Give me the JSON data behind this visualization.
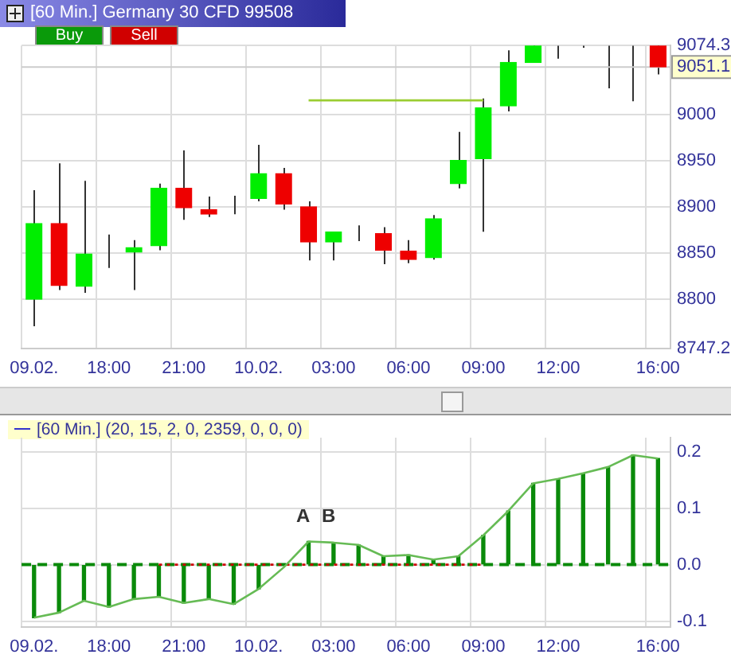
{
  "chart_data": [
    {
      "type": "candlestick",
      "title": "[60 Min.] Germany 30 CFD  99508",
      "categories": [
        "09.02.",
        null,
        null,
        "18:00",
        null,
        null,
        "21:00",
        null,
        null,
        "10.02.",
        null,
        null,
        "03:00",
        null,
        null,
        "06:00",
        null,
        null,
        "09:00",
        null,
        null,
        "12:00",
        null,
        null,
        null,
        "16:00"
      ],
      "ohlc": [
        [
          8800,
          8918,
          8771,
          8882
        ],
        [
          8882,
          8947,
          8810,
          8815
        ],
        [
          8814,
          8928,
          8807,
          8849
        ],
        [
          8849,
          8870,
          8834,
          8849
        ],
        [
          8851,
          8864,
          8810,
          8856
        ],
        [
          8858,
          8925,
          8853,
          8920
        ],
        [
          8920,
          8961,
          8886,
          8899
        ],
        [
          8897,
          8911,
          8889,
          8892
        ],
        [
          8892,
          8912,
          8892,
          8892
        ],
        [
          8909,
          8967,
          8906,
          8936
        ],
        [
          8936,
          8942,
          8897,
          8903
        ],
        [
          8900,
          8906,
          8842,
          8862
        ],
        [
          8862,
          8873,
          8842,
          8873
        ],
        [
          8873,
          8880,
          8863,
          8873
        ],
        [
          8871,
          8878,
          8838,
          8853
        ],
        [
          8852,
          8864,
          8839,
          8843
        ],
        [
          8845,
          8891,
          8843,
          8887
        ],
        [
          8925,
          8981,
          8920,
          8950
        ],
        [
          8952,
          9017,
          8873,
          9007
        ],
        [
          9009,
          9069,
          9003,
          9056
        ],
        [
          9056,
          9074,
          9056,
          9074
        ],
        [
          9068,
          9074,
          9060,
          9068
        ],
        [
          9073,
          9074,
          9072,
          9073
        ],
        [
          9050,
          9074,
          9028,
          9050
        ],
        [
          9050,
          9074,
          9014,
          9050
        ],
        [
          9074,
          9074,
          9043,
          9051.1
        ]
      ],
      "colors": [
        "#00ee00",
        "#ee0000",
        "#00ee00",
        "#333333",
        "#00ee00",
        "#00ee00",
        "#ee0000",
        "#ee0000",
        "#333333",
        "#00ee00",
        "#ee0000",
        "#ee0000",
        "#00ee00",
        "#333333",
        "#ee0000",
        "#ee0000",
        "#00ee00",
        "#00ee00",
        "#00ee00",
        "#00ee00",
        "#00ee00",
        "#333333",
        "#333333",
        "#333333",
        "#333333",
        "#ee0000"
      ],
      "series": [
        {
          "type": "line",
          "color": "#9acd32",
          "values": [
            null,
            null,
            null,
            null,
            null,
            null,
            null,
            null,
            null,
            null,
            null,
            9015,
            9015,
            9015,
            9015,
            9015,
            9015,
            9015,
            9015,
            null,
            null,
            null,
            null,
            null,
            null,
            null
          ]
        }
      ],
      "ylim": [
        8747.2,
        9074.3
      ],
      "yticks": [
        8747.2,
        8800,
        8850,
        8900,
        8950,
        9000,
        9074.3
      ],
      "ref_lines": [
        {
          "axis": "y",
          "value": 9051.1,
          "label": "9051.1",
          "color": "#cccccc"
        }
      ],
      "annotations": [
        "Buy",
        "Sell"
      ],
      "grid": true,
      "marker": "none"
    },
    {
      "type": "bar",
      "title": "[60 Min.] (20, 15, 2, 0, 2359, 0, 0, 0)",
      "categories": [
        "09.02.",
        null,
        null,
        "18:00",
        null,
        null,
        "21:00",
        null,
        null,
        "10.02.",
        null,
        null,
        "03:00",
        null,
        null,
        "06:00",
        null,
        null,
        "09:00",
        null,
        null,
        "12:00",
        null,
        null,
        null,
        "16:00"
      ],
      "series": [
        {
          "type": "bar",
          "color": "#0a8a0a",
          "values": [
            -0.094,
            -0.085,
            -0.064,
            -0.075,
            -0.061,
            -0.057,
            -0.068,
            -0.061,
            -0.07,
            -0.043,
            null,
            0.041,
            0.039,
            0.035,
            0.015,
            0.017,
            0.009,
            0.015,
            0.052,
            0.095,
            0.144,
            0.152,
            0.162,
            0.173,
            0.194,
            0.188
          ]
        },
        {
          "type": "line",
          "color": "#66bb55",
          "values": [
            -0.094,
            -0.085,
            -0.064,
            -0.075,
            -0.061,
            -0.057,
            -0.068,
            -0.061,
            -0.07,
            -0.043,
            -0.005,
            0.041,
            0.039,
            0.035,
            0.015,
            0.017,
            0.009,
            0.015,
            0.052,
            0.095,
            0.144,
            0.152,
            0.162,
            0.173,
            0.194,
            0.188
          ]
        },
        {
          "type": "line",
          "color": "#cc0000",
          "line_style": "dotted",
          "values": [
            null,
            null,
            null,
            null,
            null,
            0,
            0,
            0,
            0,
            0,
            0,
            0,
            0,
            0,
            0,
            0,
            0,
            0,
            0,
            null,
            null,
            null,
            null,
            null,
            null,
            null
          ]
        }
      ],
      "ylim": [
        -0.11,
        0.225
      ],
      "yticks": [
        -0.1,
        {
          "value": 0,
          "label": "0.0"
        },
        0.1,
        0.2
      ],
      "ref_lines": [
        {
          "axis": "y",
          "value": 0,
          "color": "#0a8a0a",
          "line_style": "dashed"
        }
      ],
      "annotations": [
        "A",
        "B"
      ],
      "grid": true,
      "marker": "none"
    }
  ]
}
